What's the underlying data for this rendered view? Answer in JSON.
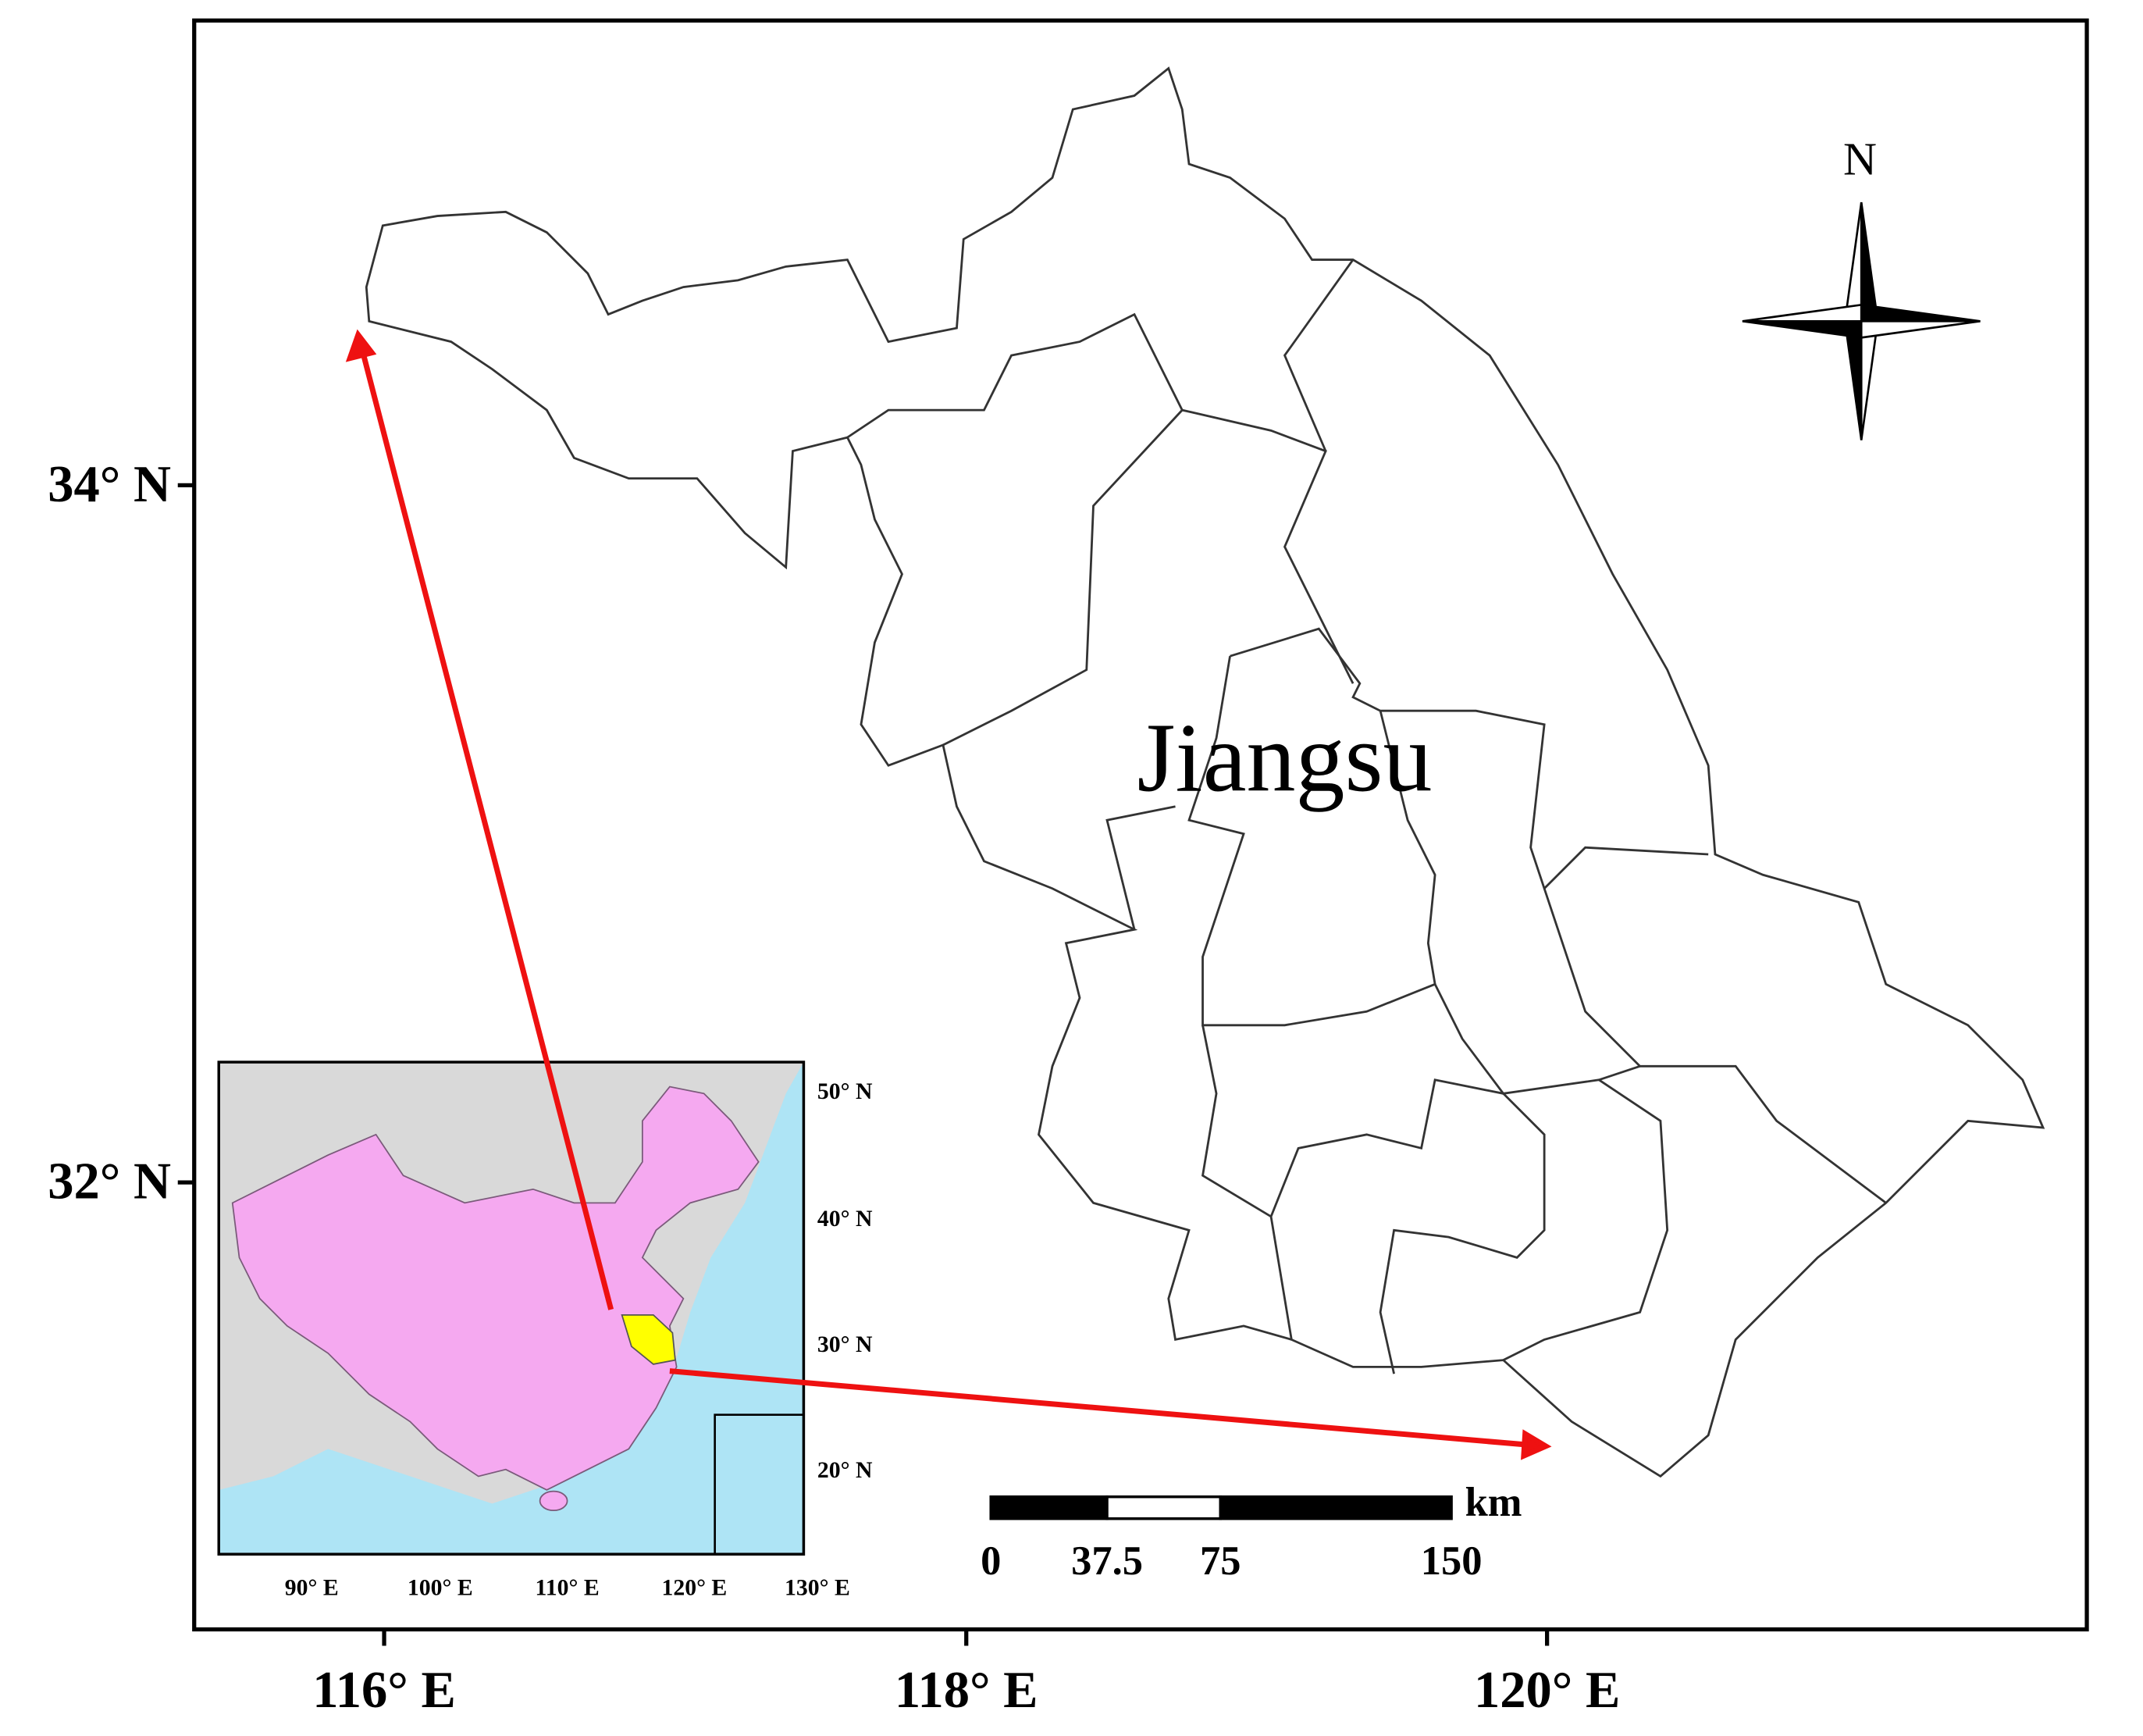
{
  "map": {
    "region_label": "Jiangsu",
    "north_label": "N",
    "latitude_labels": [
      "34° N",
      "32° N"
    ],
    "longitude_labels": [
      "116° E",
      "118° E",
      "120° E"
    ],
    "inset": {
      "latitude_labels": [
        "50° N",
        "40° N",
        "30° N",
        "20° N"
      ],
      "longitude_labels": [
        "90° E",
        "100° E",
        "110° E",
        "120° E",
        "130° E"
      ]
    },
    "scale_bar": {
      "labels": [
        "0",
        "37.5",
        "75",
        "150"
      ],
      "unit": "km"
    }
  }
}
